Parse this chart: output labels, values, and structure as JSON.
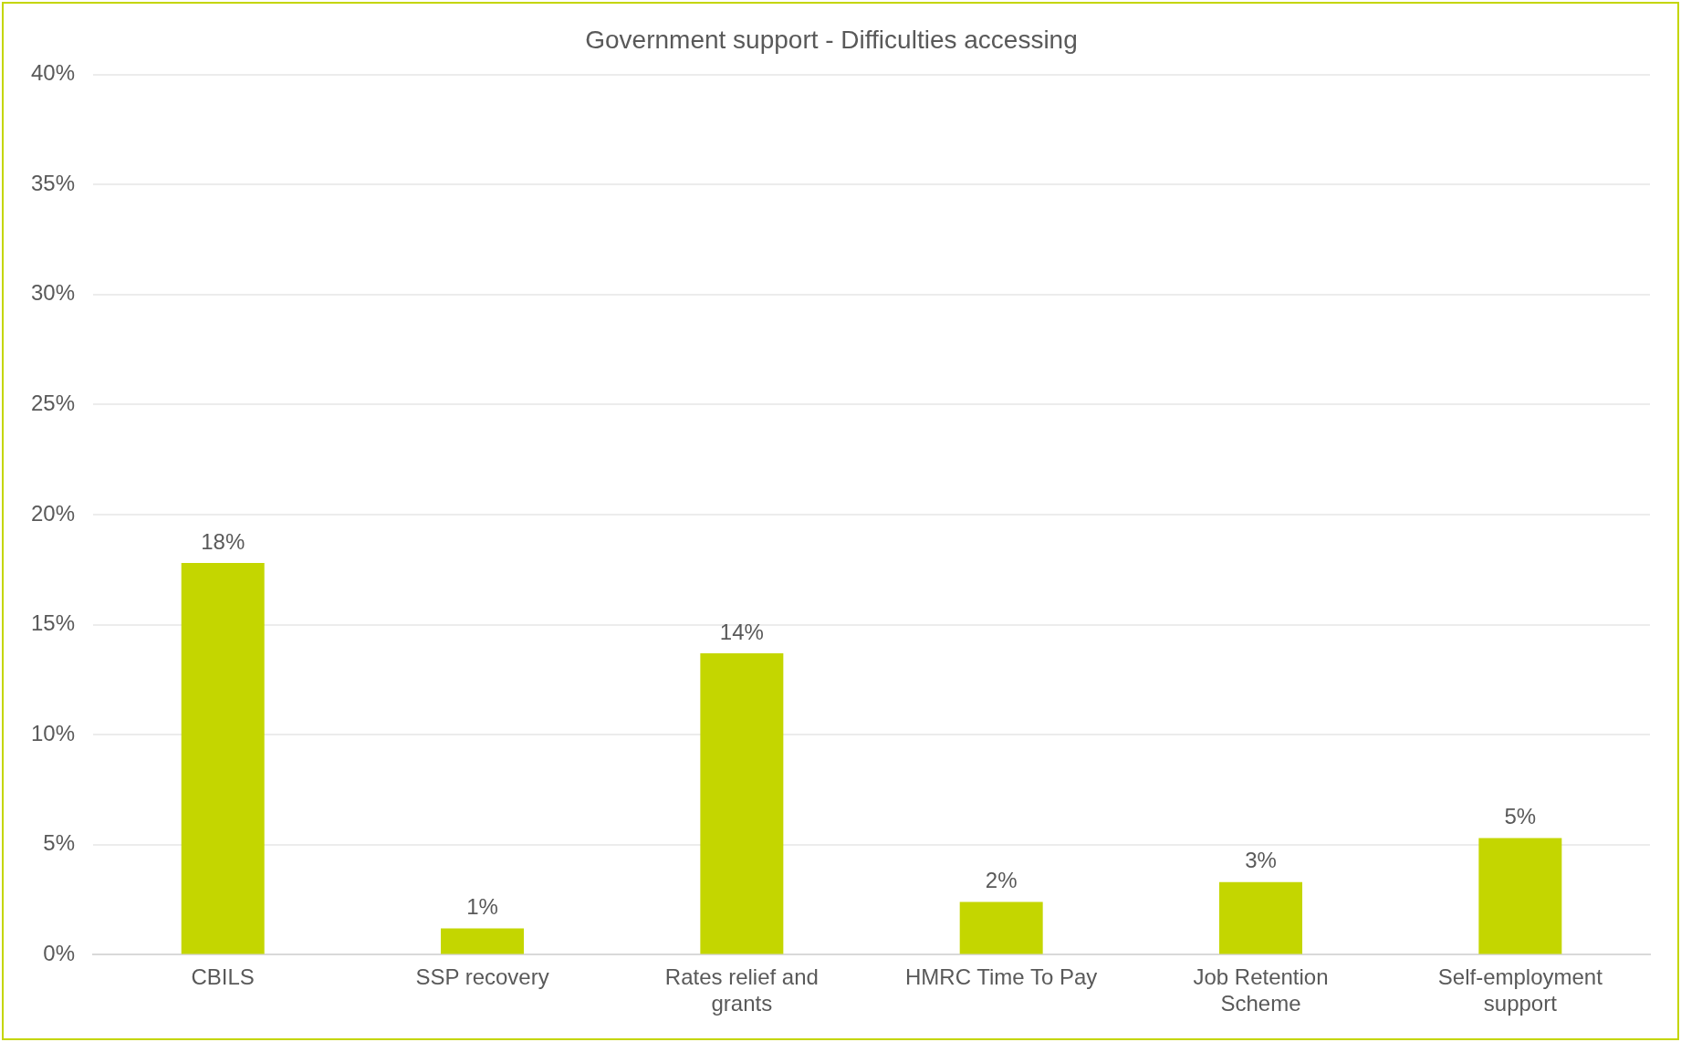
{
  "chart_data": {
    "type": "bar",
    "title": "Government support - Difficulties accessing",
    "categories": [
      "CBILS",
      "SSP recovery",
      "Rates relief and grants",
      "HMRC Time To Pay",
      "Job Retention Scheme",
      "Self-employment support"
    ],
    "values": [
      17.8,
      1.2,
      13.7,
      2.4,
      3.3,
      5.3
    ],
    "value_labels": [
      "18%",
      "1%",
      "14%",
      "2%",
      "3%",
      "5%"
    ],
    "color": "#c4d600",
    "ylim": [
      0,
      40
    ],
    "yticks": [
      {
        "value": 0,
        "label": "0%"
      },
      {
        "value": 5,
        "label": "5%"
      },
      {
        "value": 10,
        "label": "10%"
      },
      {
        "value": 15,
        "label": "15%"
      },
      {
        "value": 20,
        "label": "20%"
      },
      {
        "value": 25,
        "label": "25%"
      },
      {
        "value": 30,
        "label": "30%"
      },
      {
        "value": 35,
        "label": "35%"
      },
      {
        "value": 40,
        "label": "40%"
      }
    ],
    "grid": "y",
    "legend": false
  }
}
